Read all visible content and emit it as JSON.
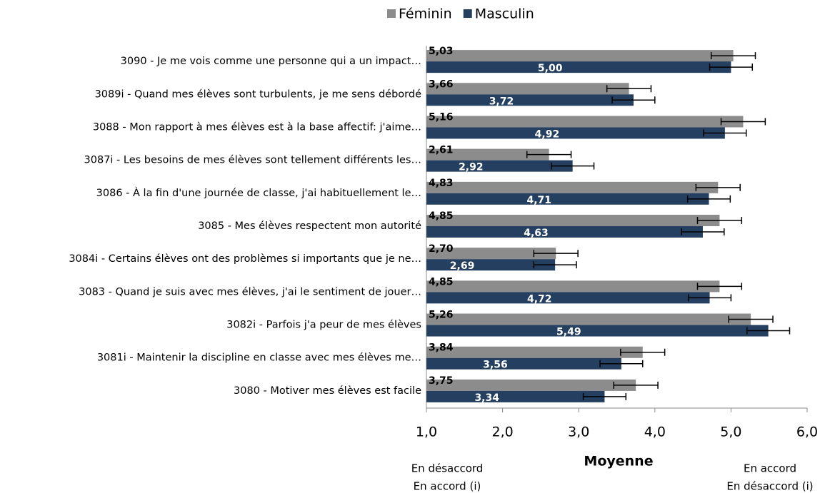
{
  "chart_data": {
    "type": "bar",
    "orientation": "horizontal",
    "categories": [
      "3090 - Je me vois comme une personne qui a un impact…",
      "3089i - Quand mes élèves sont turbulents, je me sens débordé",
      "3088 - Mon rapport à mes élèves est à la base affectif: j'aime…",
      "3087i - Les besoins de mes élèves sont tellement différents les…",
      "3086 - À la fin d'une journée de classe, j'ai habituellement le…",
      "3085 - Mes élèves respectent mon autorité",
      "3084i - Certains élèves ont des problèmes si importants que je ne…",
      "3083 - Quand je suis avec mes élèves, j'ai le sentiment de jouer…",
      "3082i - Parfois j'a peur de mes élèves",
      "3081i - Maintenir la discipline en classe avec mes élèves me…",
      "3080 - Motiver mes élèves est facile"
    ],
    "series": [
      {
        "name": "Féminin",
        "color": "#8c8c8c",
        "values": [
          5.03,
          3.66,
          5.16,
          2.61,
          4.83,
          4.85,
          2.7,
          4.85,
          5.26,
          3.84,
          3.75
        ],
        "value_labels": [
          "5,03",
          "3,66",
          "5,16",
          "2,61",
          "4,83",
          "4,85",
          "2,70",
          "4,85",
          "5,26",
          "3,84",
          "3,75"
        ],
        "errors": [
          0.29,
          0.29,
          0.29,
          0.29,
          0.29,
          0.29,
          0.29,
          0.29,
          0.29,
          0.29,
          0.29
        ]
      },
      {
        "name": "Masculin",
        "color": "#243f60",
        "values": [
          5.0,
          3.72,
          4.92,
          2.92,
          4.71,
          4.63,
          2.69,
          4.72,
          5.49,
          3.56,
          3.34
        ],
        "value_labels": [
          "5,00",
          "3,72",
          "4,92",
          "2,92",
          "4,71",
          "4,63",
          "2,69",
          "4,72",
          "5,49",
          "3,56",
          "3,34"
        ],
        "errors": [
          0.28,
          0.28,
          0.28,
          0.28,
          0.28,
          0.28,
          0.28,
          0.28,
          0.28,
          0.28,
          0.28
        ]
      }
    ],
    "xlim": [
      1,
      6
    ],
    "xticks": [
      {
        "value": 1,
        "label": "1,0"
      },
      {
        "value": 2,
        "label": "2,0"
      },
      {
        "value": 3,
        "label": "3,0"
      },
      {
        "value": 4,
        "label": "4,0"
      },
      {
        "value": 5,
        "label": "5,0"
      },
      {
        "value": 6,
        "label": "6,0"
      }
    ],
    "x_label": "Moyenne",
    "left_note": [
      "En désaccord",
      "En accord (i)"
    ],
    "right_note": [
      "En accord",
      "En désaccord (i)"
    ],
    "legend": "top"
  }
}
